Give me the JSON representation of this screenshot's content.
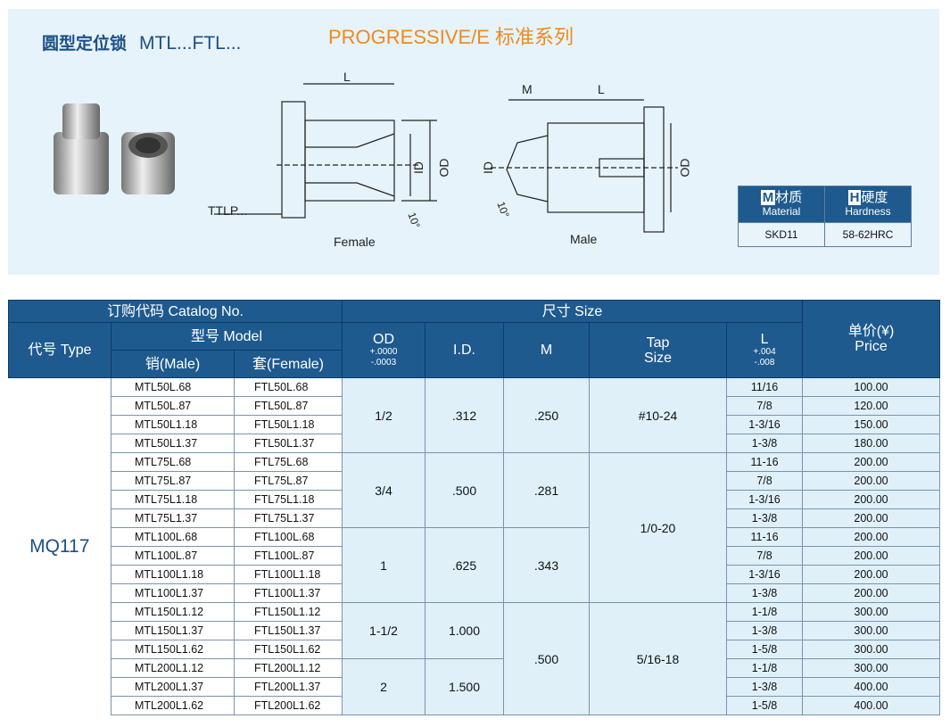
{
  "header": {
    "title_cn": "圆型定位锁",
    "title_model": "MTL...FTL...",
    "series": "PROGRESSIVE/E 标准系列"
  },
  "drawings": {
    "female_label": "Female",
    "male_label": "Male",
    "ttlp": "TTLP...",
    "L": "L",
    "M": "M",
    "ID": "ID",
    "OD": "OD",
    "angle": "10°"
  },
  "spec": {
    "material_cn": "材质",
    "material_en": "Material",
    "material_value": "SKD11",
    "hardness_cn": "硬度",
    "hardness_en": "Hardness",
    "hardness_value": "58-62HRC",
    "m_badge": "M",
    "h_badge": "H"
  },
  "table": {
    "catalog_header": "订购代码 Catalog No.",
    "size_header": "尺寸 Size",
    "type_header": "代号 Type",
    "model_header": "型号 Model",
    "male_header": "销(Male)",
    "female_header": "套(Female)",
    "od_header": "OD",
    "od_tol_plus": "+.0000",
    "od_tol_minus": "-.0003",
    "id_header": "I.D.",
    "m_header": "M",
    "tap_header_1": "Tap",
    "tap_header_2": "Size",
    "l_header": "L",
    "l_tol_plus": "+.004",
    "l_tol_minus": "-.008",
    "price_header_cn": "单价(¥)",
    "price_header_en": "Price",
    "type": "MQ117",
    "od_groups": [
      "1/2",
      "3/4",
      "1",
      "1-1/2",
      "2"
    ],
    "id_groups": [
      ".312",
      ".500",
      ".625",
      "1.000",
      "1.500"
    ],
    "m_groups": [
      ".250",
      ".281",
      ".343",
      ".500"
    ],
    "tap_groups": [
      "#10-24",
      "1/0-20",
      "5/16-18"
    ],
    "rows": [
      {
        "male": "MTL50L.68",
        "female": "FTL50L.68",
        "l": "11/16",
        "price": "100.00"
      },
      {
        "male": "MTL50L.87",
        "female": "FTL50L.87",
        "l": "7/8",
        "price": "120.00"
      },
      {
        "male": "MTL50L1.18",
        "female": "FTL50L1.18",
        "l": "1-3/16",
        "price": "150.00"
      },
      {
        "male": "MTL50L1.37",
        "female": "FTL50L1.37",
        "l": "1-3/8",
        "price": "180.00"
      },
      {
        "male": "MTL75L.68",
        "female": "FTL75L.68",
        "l": "11-16",
        "price": "200.00"
      },
      {
        "male": "MTL75L.87",
        "female": "FTL75L.87",
        "l": "7/8",
        "price": "200.00"
      },
      {
        "male": "MTL75L1.18",
        "female": "FTL75L1.18",
        "l": "1-3/16",
        "price": "200.00"
      },
      {
        "male": "MTL75L1.37",
        "female": "FTL75L1.37",
        "l": "1-3/8",
        "price": "200.00"
      },
      {
        "male": "MTL100L.68",
        "female": "FTL100L.68",
        "l": "11-16",
        "price": "200.00"
      },
      {
        "male": "MTL100L.87",
        "female": "FTL100L.87",
        "l": "7/8",
        "price": "200.00"
      },
      {
        "male": "MTL100L1.18",
        "female": "FTL100L1.18",
        "l": "1-3/16",
        "price": "200.00"
      },
      {
        "male": "MTL100L1.37",
        "female": "FTL100L1.37",
        "l": "1-3/8",
        "price": "200.00"
      },
      {
        "male": "MTL150L1.12",
        "female": "FTL150L1.12",
        "l": "1-1/8",
        "price": "300.00"
      },
      {
        "male": "MTL150L1.37",
        "female": "FTL150L1.37",
        "l": "1-3/8",
        "price": "300.00"
      },
      {
        "male": "MTL150L1.62",
        "female": "FTL150L1.62",
        "l": "1-5/8",
        "price": "300.00"
      },
      {
        "male": "MTL200L1.12",
        "female": "FTL200L1.12",
        "l": "1-1/8",
        "price": "300.00"
      },
      {
        "male": "MTL200L1.37",
        "female": "FTL200L1.37",
        "l": "1-3/8",
        "price": "400.00"
      },
      {
        "male": "MTL200L1.62",
        "female": "FTL200L1.62",
        "l": "1-5/8",
        "price": "400.00"
      }
    ]
  }
}
